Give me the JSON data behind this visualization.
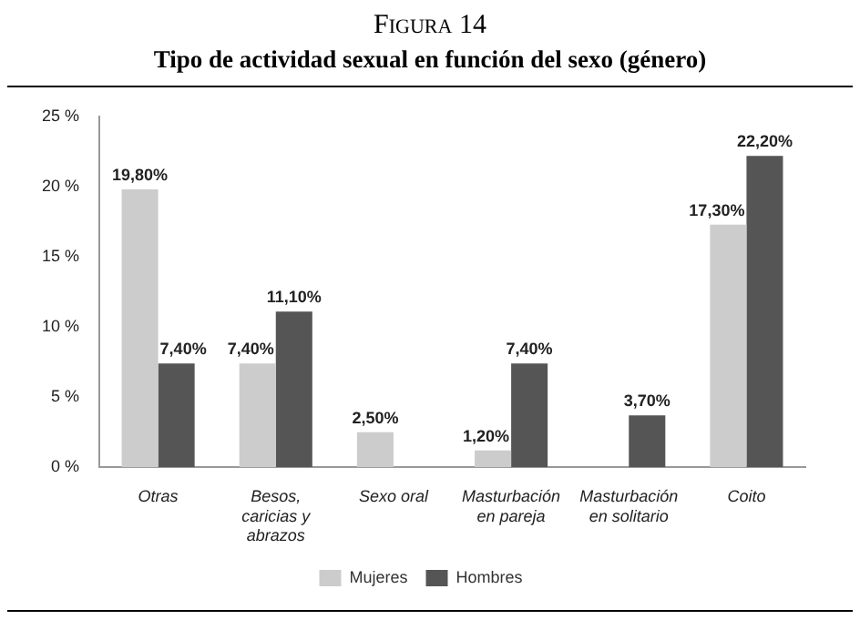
{
  "chart_data": {
    "type": "bar",
    "title": "Figura 14",
    "subtitle": "Tipo de actividad sexual en función del sexo (género)",
    "categories": [
      "Otras",
      "Besos, caricias y abrazos",
      "Sexo oral",
      "Masturbación en pareja",
      "Masturbación en solitario",
      "Coito"
    ],
    "series": [
      {
        "name": "Mujeres",
        "color": "#cccccc",
        "values": [
          19.8,
          7.4,
          2.5,
          1.2,
          null,
          17.3
        ],
        "value_labels": [
          "19,80%",
          "7,40%",
          "2,50%",
          "1,20%",
          null,
          "17,30%"
        ]
      },
      {
        "name": "Hombres",
        "color": "#555555",
        "values": [
          7.4,
          11.1,
          null,
          7.4,
          3.7,
          22.2
        ],
        "value_labels": [
          "7,40%",
          "11,10%",
          null,
          "7,40%",
          "3,70%",
          "22,20%"
        ]
      }
    ],
    "ylim": [
      0,
      25
    ],
    "yticks": [
      {
        "value": 0,
        "label": "0 %"
      },
      {
        "value": 5,
        "label": "5 %"
      },
      {
        "value": 10,
        "label": "10 %"
      },
      {
        "value": 15,
        "label": "15 %"
      },
      {
        "value": 20,
        "label": "20 %"
      },
      {
        "value": 25,
        "label": "25 %"
      }
    ],
    "grid": false,
    "legend": "bottom"
  }
}
